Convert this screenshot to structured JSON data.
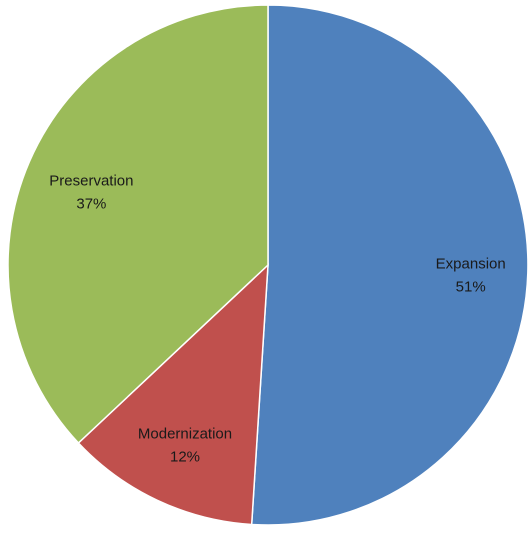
{
  "chart_data": {
    "type": "pie",
    "slices": [
      {
        "label": "Expansion",
        "value": 51,
        "value_label": "51%",
        "color": "#4f81bd"
      },
      {
        "label": "Modernization",
        "value": 12,
        "value_label": "12%",
        "color": "#c0504d"
      },
      {
        "label": "Preservation",
        "value": 37,
        "value_label": "37%",
        "color": "#9bbb59"
      }
    ],
    "start_angle": "12 o'clock",
    "direction": "clockwise",
    "legend": "none",
    "labels": "inside slices"
  }
}
